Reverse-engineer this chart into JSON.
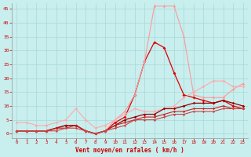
{
  "xlabel": "Vent moyen/en rafales ( km/h )",
  "background_color": "#c8eeee",
  "grid_color": "#a8d8d8",
  "text_color": "#cc0000",
  "x_ticks": [
    0,
    1,
    2,
    3,
    4,
    5,
    6,
    7,
    8,
    9,
    10,
    11,
    12,
    13,
    14,
    15,
    16,
    17,
    18,
    19,
    20,
    21,
    22,
    23
  ],
  "y_ticks": [
    0,
    5,
    10,
    15,
    20,
    25,
    30,
    35,
    40,
    45
  ],
  "ylim": [
    -1.5,
    47
  ],
  "xlim": [
    -0.5,
    23.5
  ],
  "lines": [
    {
      "x": [
        0,
        1,
        2,
        3,
        4,
        5,
        6,
        7,
        8,
        9,
        10,
        11,
        12,
        13,
        14,
        15,
        16,
        17,
        18,
        19,
        20,
        21,
        22,
        23
      ],
      "y": [
        1,
        1,
        1,
        1,
        2,
        3,
        3,
        1,
        0,
        1,
        4,
        6,
        14,
        26,
        33,
        31,
        22,
        14,
        13,
        12,
        11,
        12,
        10,
        9
      ],
      "color": "#dd0000",
      "lw": 0.9,
      "ms": 2.0
    },
    {
      "x": [
        0,
        1,
        2,
        3,
        4,
        5,
        6,
        7,
        8,
        9,
        10,
        11,
        12,
        13,
        14,
        15,
        16,
        17,
        18,
        19,
        20,
        21,
        22,
        23
      ],
      "y": [
        1,
        1,
        1,
        1,
        2,
        3,
        3,
        1,
        0,
        1,
        5,
        8,
        14,
        26,
        46,
        46,
        46,
        35,
        14,
        13,
        13,
        13,
        16,
        18
      ],
      "color": "#ff9999",
      "lw": 0.8,
      "ms": 1.8
    },
    {
      "x": [
        0,
        1,
        2,
        3,
        4,
        5,
        6,
        7,
        8,
        9,
        10,
        11,
        12,
        13,
        14,
        15,
        16,
        17,
        18,
        19,
        20,
        21,
        22,
        23
      ],
      "y": [
        4,
        4,
        3,
        3,
        4,
        5,
        9,
        5,
        2,
        3,
        5,
        7,
        9,
        8,
        8,
        9,
        10,
        13,
        15,
        17,
        19,
        19,
        17,
        17
      ],
      "color": "#ffaaaa",
      "lw": 0.8,
      "ms": 1.8
    },
    {
      "x": [
        0,
        1,
        2,
        3,
        4,
        5,
        6,
        7,
        8,
        9,
        10,
        11,
        12,
        13,
        14,
        15,
        16,
        17,
        18,
        19,
        20,
        21,
        22,
        23
      ],
      "y": [
        1,
        1,
        1,
        1,
        2,
        3,
        3,
        1,
        0,
        1,
        3,
        5,
        6,
        7,
        7,
        9,
        9,
        10,
        11,
        11,
        11,
        12,
        11,
        10
      ],
      "color": "#990000",
      "lw": 0.9,
      "ms": 1.8
    },
    {
      "x": [
        0,
        1,
        2,
        3,
        4,
        5,
        6,
        7,
        8,
        9,
        10,
        11,
        12,
        13,
        14,
        15,
        16,
        17,
        18,
        19,
        20,
        21,
        22,
        23
      ],
      "y": [
        1,
        1,
        1,
        1,
        2,
        2,
        3,
        1,
        0,
        1,
        3,
        4,
        5,
        6,
        6,
        7,
        8,
        8,
        9,
        9,
        9,
        10,
        9,
        9
      ],
      "color": "#cc2222",
      "lw": 0.8,
      "ms": 1.6
    },
    {
      "x": [
        0,
        1,
        2,
        3,
        4,
        5,
        6,
        7,
        8,
        9,
        10,
        11,
        12,
        13,
        14,
        15,
        16,
        17,
        18,
        19,
        20,
        21,
        22,
        23
      ],
      "y": [
        1,
        1,
        1,
        1,
        1,
        2,
        2,
        1,
        0,
        1,
        2,
        3,
        5,
        5,
        5,
        6,
        7,
        7,
        8,
        8,
        8,
        9,
        9,
        9
      ],
      "color": "#cc4444",
      "lw": 0.8,
      "ms": 1.6
    }
  ]
}
